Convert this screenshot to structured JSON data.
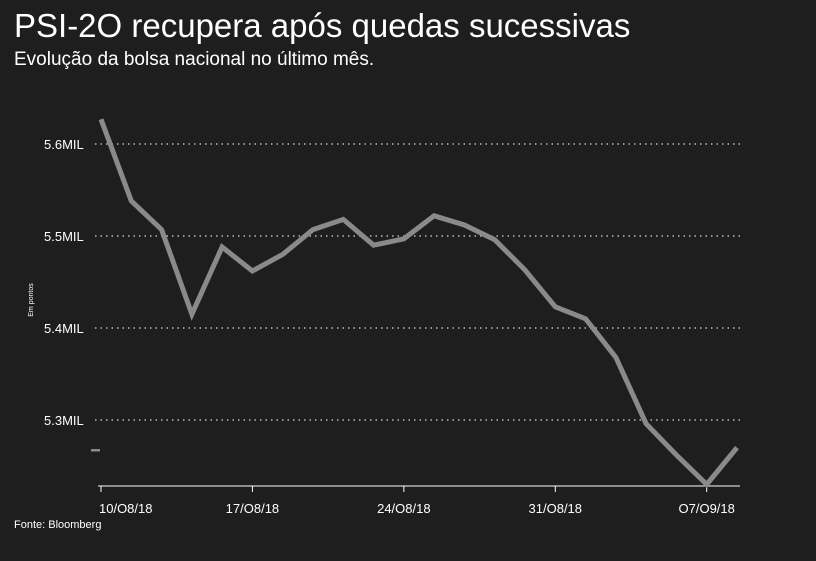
{
  "header": {
    "title": "PSI-2O recupera após quedas sucessivas",
    "subtitle": "Evolução da bolsa nacional no último mês."
  },
  "footer": {
    "source": "Fonte: Bloomberg"
  },
  "colors": {
    "background": "#1f1e1e",
    "line": "#8a8a8a",
    "grid": "#d8d8d8",
    "text": "#ffffff"
  },
  "chart_data": {
    "type": "line",
    "title": "PSI-2O recupera após quedas sucessivas",
    "subtitle": "Evolução da bolsa nacional no último mês.",
    "ylabel": "Em pontos",
    "xlabel": "",
    "ylim": [
      5230,
      5620
    ],
    "yticks": [
      {
        "value": 5600,
        "label": "5.6MIL"
      },
      {
        "value": 5500,
        "label": "5.5MIL"
      },
      {
        "value": 5400,
        "label": "5.4MIL"
      },
      {
        "value": 5300,
        "label": "5.3MIL"
      }
    ],
    "xticks": [
      "10/O8/18",
      "17/O8/18",
      "24/O8/18",
      "31/O8/18",
      "O7/O9/18"
    ],
    "grid": "horizontal dotted",
    "legend": "none",
    "series": [
      {
        "values": [
          5627,
          5538,
          5507,
          5415,
          5488,
          5462,
          5480,
          5507,
          5518,
          5490,
          5497,
          5522,
          5512,
          5496,
          5463,
          5423,
          5410,
          5368,
          5296,
          5262,
          5230,
          5270
        ]
      }
    ]
  }
}
